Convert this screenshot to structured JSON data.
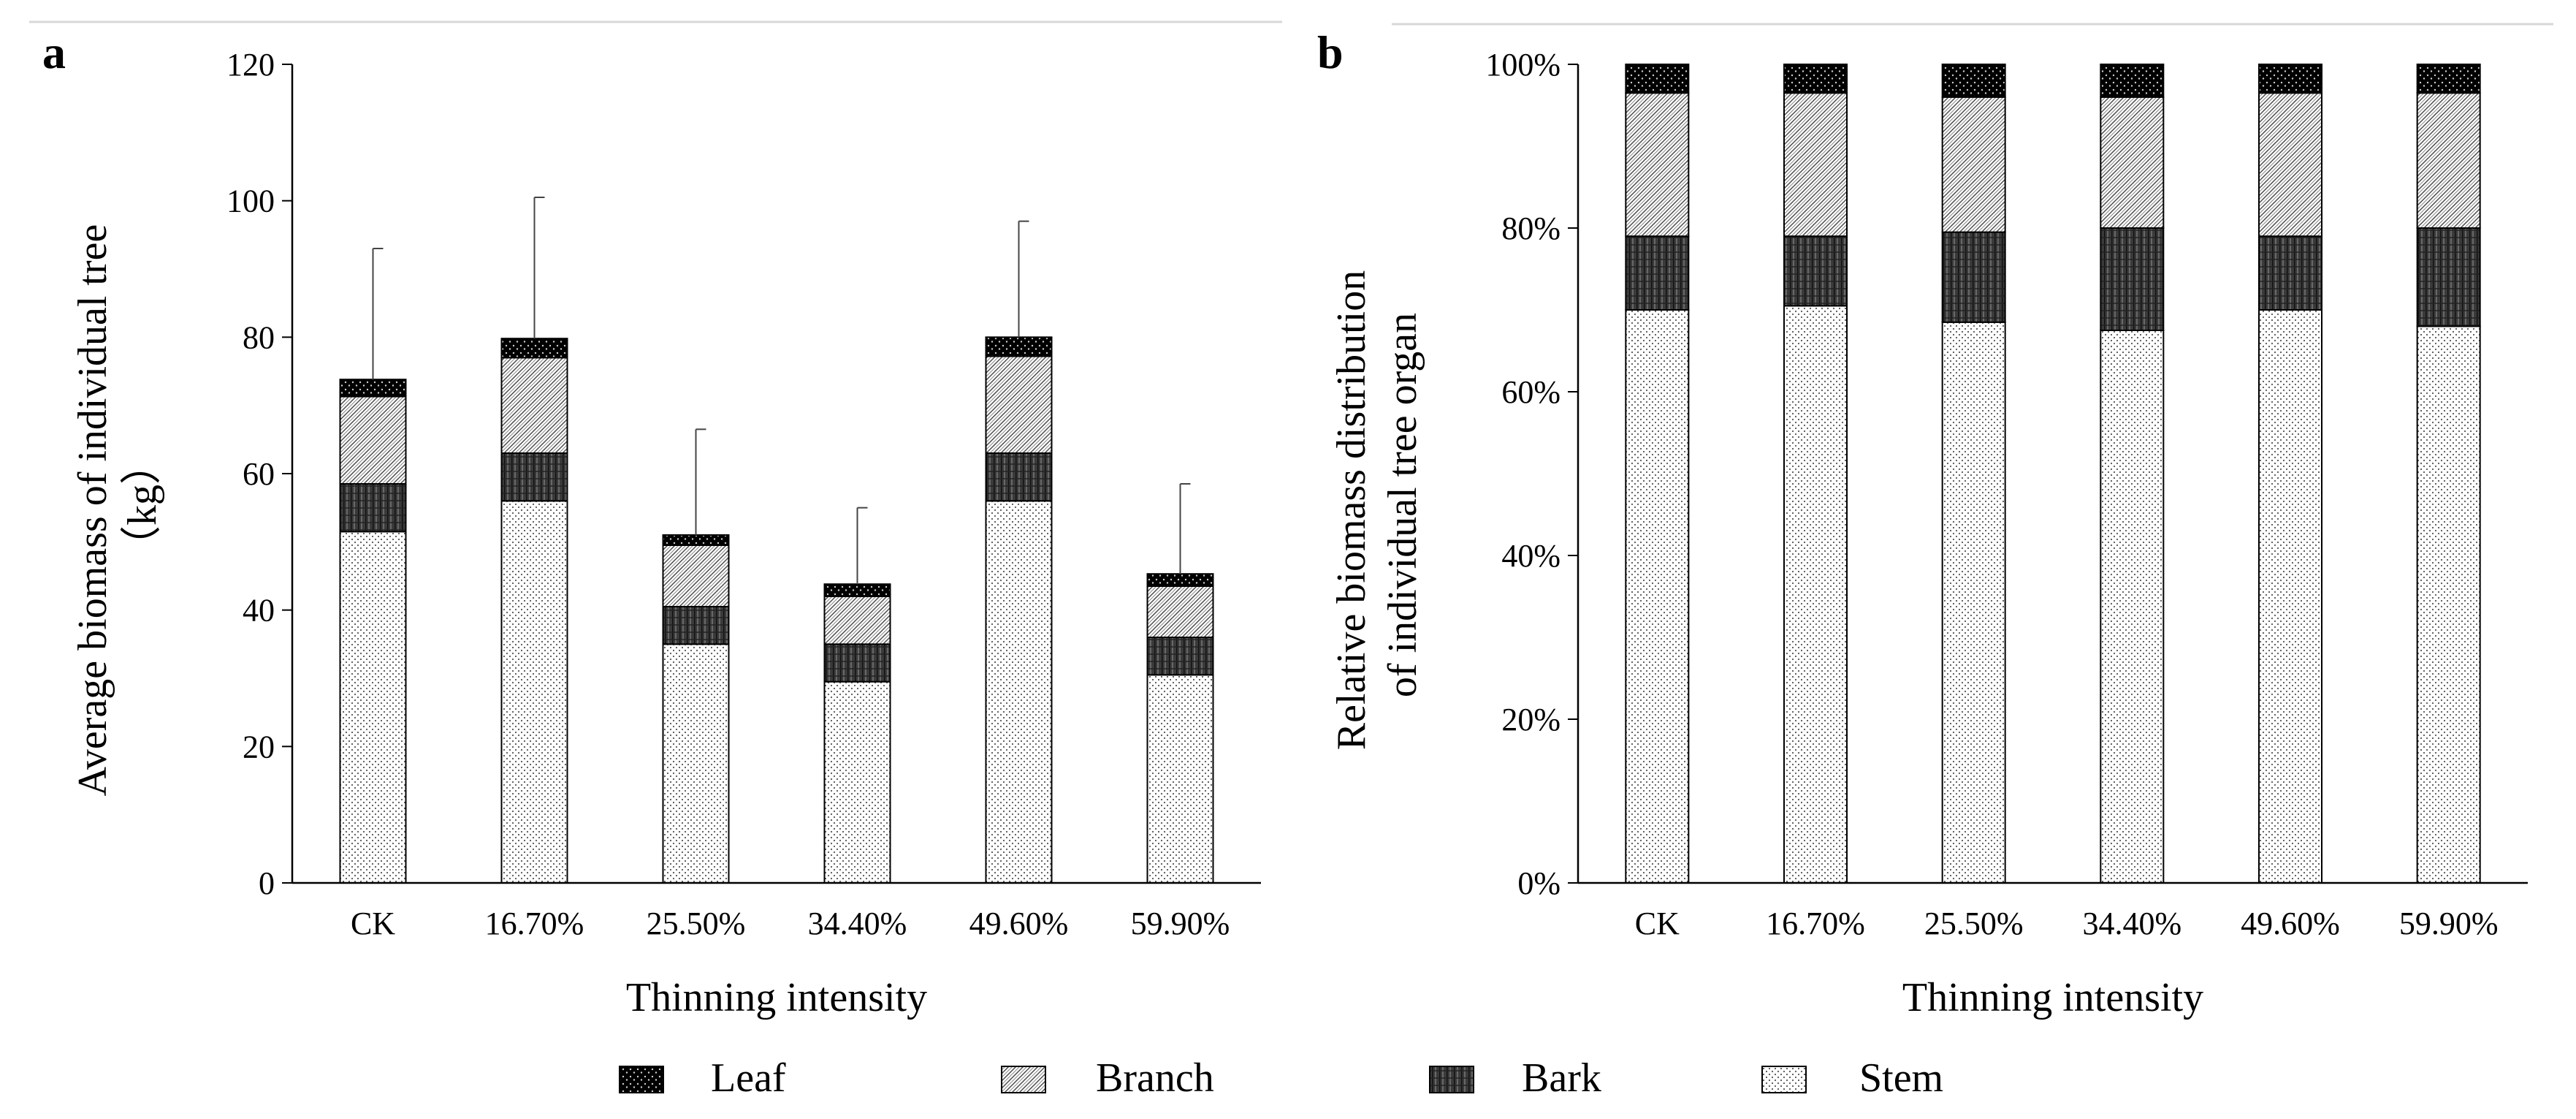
{
  "legend": [
    {
      "key": "leaf",
      "label": "Leaf"
    },
    {
      "key": "branch",
      "label": "Branch"
    },
    {
      "key": "bark",
      "label": "Bark"
    },
    {
      "key": "stem",
      "label": "Stem"
    }
  ],
  "chart_data": [
    {
      "panel_label": "a",
      "type": "bar",
      "stacked": true,
      "categories": [
        "CK",
        "16.70%",
        "25.50%",
        "34.40%",
        "49.60%",
        "59.90%"
      ],
      "series": [
        {
          "name": "Stem",
          "values": [
            51.5,
            56.0,
            35.0,
            29.5,
            56.0,
            30.5
          ]
        },
        {
          "name": "Bark",
          "values": [
            7.0,
            7.0,
            5.5,
            5.5,
            7.0,
            5.5
          ]
        },
        {
          "name": "Branch",
          "values": [
            12.8,
            14.0,
            9.0,
            7.0,
            14.2,
            7.5
          ]
        },
        {
          "name": "Leaf",
          "values": [
            2.5,
            2.8,
            1.5,
            1.8,
            2.8,
            1.8
          ]
        }
      ],
      "error_top": [
        93,
        100.5,
        66.5,
        55,
        97,
        58.5
      ],
      "xlabel": "Thinning intensity",
      "ylabel_lines": [
        "Average biomass of individual tree",
        "（kg）"
      ],
      "ylim": [
        0,
        120
      ],
      "yticks": [
        "0",
        "20",
        "40",
        "60",
        "80",
        "100",
        "120"
      ],
      "legend_position": "bottom"
    },
    {
      "panel_label": "b",
      "type": "bar",
      "stacked": true,
      "percent": true,
      "categories": [
        "CK",
        "16.70%",
        "25.50%",
        "34.40%",
        "49.60%",
        "59.90%"
      ],
      "series": [
        {
          "name": "Stem",
          "values": [
            70,
            70.5,
            68.5,
            67.5,
            70,
            68
          ]
        },
        {
          "name": "Bark",
          "values": [
            9,
            8.5,
            11,
            12.5,
            9,
            12
          ]
        },
        {
          "name": "Branch",
          "values": [
            17.5,
            17.5,
            16.5,
            16,
            17.5,
            16.5
          ]
        },
        {
          "name": "Leaf",
          "values": [
            3.5,
            3.5,
            4,
            4,
            3.5,
            3.5
          ]
        }
      ],
      "xlabel": "Thinning intensity",
      "ylabel_lines": [
        "Relative biomass distribution",
        "of individual tree organ"
      ],
      "ylim": [
        0,
        100
      ],
      "yticks": [
        "0%",
        "20%",
        "40%",
        "60%",
        "80%",
        "100%"
      ],
      "legend_position": "bottom"
    }
  ]
}
